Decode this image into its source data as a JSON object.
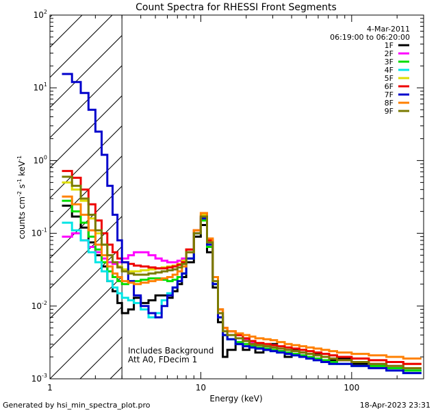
{
  "footer": {
    "generated_by": "Generated by hsi_min_spectra_plot.pro",
    "timestamp": "18-Apr-2023 23:31"
  },
  "chart_data": {
    "type": "line",
    "title": "Count Spectra for RHESSI Front Segments",
    "date": "4-Mar-2011",
    "time_range": "06:19:00 to 06:20:00",
    "xlabel": "Energy (keV)",
    "ylabel_parts": {
      "pre": "counts cm",
      "e1": "-2",
      "mid": " s",
      "e2": "-1",
      "mid2": " keV",
      "e3": "-1"
    },
    "xscale": "log",
    "yscale": "log",
    "xlim": [
      1,
      300
    ],
    "ylim": [
      0.001,
      100
    ],
    "x_ticks": [
      {
        "value": 1,
        "label": "1"
      },
      {
        "value": 10,
        "label": "10"
      },
      {
        "value": 100,
        "label": "100"
      }
    ],
    "y_ticks": [
      {
        "value": 0.001,
        "base": "10",
        "exp": "-3"
      },
      {
        "value": 0.01,
        "base": "10",
        "exp": "-2"
      },
      {
        "value": 0.1,
        "base": "10",
        "exp": "-1"
      },
      {
        "value": 1,
        "base": "10",
        "exp": "0"
      },
      {
        "value": 10,
        "base": "10",
        "exp": "1"
      },
      {
        "value": 100,
        "base": "10",
        "exp": "2"
      }
    ],
    "hatched_region": {
      "x_range": [
        1,
        3
      ],
      "description": "excluded low-energy region"
    },
    "annotations": [
      "Includes Background",
      "Att A0, FDecim 1"
    ],
    "legend_position": "top-right",
    "series": [
      {
        "name": "1F",
        "color": "#000000",
        "values": [
          0.24,
          0.17,
          0.12,
          0.075,
          0.05,
          0.035,
          0.022,
          0.016,
          0.011,
          0.008,
          0.009,
          0.013,
          0.011,
          0.012,
          0.014,
          0.014,
          0.013,
          0.016,
          0.02,
          0.025,
          0.04,
          0.09,
          0.13,
          0.055,
          0.018,
          0.006,
          0.002,
          0.0025,
          0.003,
          0.0025,
          0.003,
          0.0023,
          0.0025,
          0.003,
          0.0024,
          0.002,
          0.0025,
          0.0023,
          0.002,
          0.0022,
          0.002,
          0.0018,
          0.0019,
          0.0016,
          0.0015,
          0.0014,
          0.0013
        ]
      },
      {
        "name": "2F",
        "color": "#ff00ff",
        "values": [
          0.09,
          0.1,
          0.08,
          0.065,
          0.055,
          0.045,
          0.04,
          0.038,
          0.04,
          0.045,
          0.05,
          0.055,
          0.055,
          0.05,
          0.045,
          0.042,
          0.04,
          0.04,
          0.042,
          0.045,
          0.06,
          0.11,
          0.17,
          0.08,
          0.025,
          0.008,
          0.005,
          0.0045,
          0.004,
          0.0035,
          0.0032,
          0.003,
          0.0028,
          0.0027,
          0.0026,
          0.0025,
          0.0024,
          0.0023,
          0.0022,
          0.0021,
          0.002,
          0.0019,
          0.0018,
          0.0017,
          0.0016,
          0.0015,
          0.0014
        ]
      },
      {
        "name": "3F",
        "color": "#00dd00",
        "values": [
          0.28,
          0.2,
          0.14,
          0.09,
          0.06,
          0.04,
          0.03,
          0.025,
          0.022,
          0.02,
          0.021,
          0.022,
          0.023,
          0.024,
          0.024,
          0.023,
          0.022,
          0.023,
          0.025,
          0.028,
          0.045,
          0.1,
          0.15,
          0.065,
          0.02,
          0.007,
          0.004,
          0.0035,
          0.0032,
          0.003,
          0.0028,
          0.0027,
          0.0026,
          0.0025,
          0.0024,
          0.0023,
          0.0022,
          0.0021,
          0.002,
          0.0019,
          0.0018,
          0.0017,
          0.0016,
          0.0015,
          0.0015,
          0.0014,
          0.0013
        ]
      },
      {
        "name": "4F",
        "color": "#00e5e5",
        "values": [
          0.14,
          0.11,
          0.08,
          0.055,
          0.04,
          0.03,
          0.022,
          0.018,
          0.015,
          0.013,
          0.012,
          0.011,
          0.009,
          0.007,
          0.008,
          0.012,
          0.015,
          0.018,
          0.022,
          0.028,
          0.045,
          0.1,
          0.16,
          0.07,
          0.02,
          0.007,
          0.004,
          0.0035,
          0.003,
          0.0028,
          0.0027,
          0.0026,
          0.0025,
          0.0024,
          0.0023,
          0.0022,
          0.0021,
          0.002,
          0.0019,
          0.0018,
          0.0017,
          0.0016,
          0.0016,
          0.0015,
          0.0014,
          0.0013,
          0.0012
        ]
      },
      {
        "name": "5F",
        "color": "#dddd00",
        "values": [
          0.5,
          0.4,
          0.28,
          0.16,
          0.1,
          0.07,
          0.05,
          0.04,
          0.035,
          0.032,
          0.03,
          0.03,
          0.031,
          0.032,
          0.033,
          0.034,
          0.035,
          0.036,
          0.038,
          0.042,
          0.06,
          0.11,
          0.18,
          0.08,
          0.025,
          0.009,
          0.005,
          0.0045,
          0.004,
          0.0036,
          0.0033,
          0.0031,
          0.003,
          0.0029,
          0.0028,
          0.0027,
          0.0026,
          0.0025,
          0.0024,
          0.0023,
          0.0022,
          0.0021,
          0.002,
          0.0019,
          0.0018,
          0.0017,
          0.0016
        ]
      },
      {
        "name": "6F",
        "color": "#ee0000",
        "values": [
          0.72,
          0.58,
          0.4,
          0.25,
          0.15,
          0.1,
          0.07,
          0.055,
          0.045,
          0.04,
          0.038,
          0.036,
          0.035,
          0.034,
          0.033,
          0.033,
          0.034,
          0.035,
          0.037,
          0.04,
          0.06,
          0.11,
          0.17,
          0.08,
          0.025,
          0.009,
          0.005,
          0.0045,
          0.004,
          0.0036,
          0.0033,
          0.0031,
          0.003,
          0.0029,
          0.0028,
          0.0027,
          0.0026,
          0.0025,
          0.0024,
          0.0023,
          0.0022,
          0.0021,
          0.002,
          0.0019,
          0.0018,
          0.0017,
          0.0016
        ]
      },
      {
        "name": "7F",
        "color": "#0000cc",
        "values": [
          15.5,
          12,
          8.5,
          5,
          2.5,
          1.2,
          0.45,
          0.18,
          0.08,
          0.04,
          0.022,
          0.014,
          0.01,
          0.008,
          0.007,
          0.01,
          0.014,
          0.018,
          0.022,
          0.028,
          0.045,
          0.1,
          0.16,
          0.07,
          0.02,
          0.007,
          0.004,
          0.0035,
          0.003,
          0.0028,
          0.0027,
          0.0026,
          0.0025,
          0.0024,
          0.0023,
          0.0022,
          0.0021,
          0.002,
          0.0019,
          0.0018,
          0.0017,
          0.0016,
          0.0016,
          0.0015,
          0.0014,
          0.0013,
          0.0012
        ]
      },
      {
        "name": "8F",
        "color": "#ff8000",
        "values": [
          0.32,
          0.25,
          0.18,
          0.11,
          0.07,
          0.05,
          0.035,
          0.028,
          0.025,
          0.022,
          0.021,
          0.02,
          0.021,
          0.022,
          0.023,
          0.024,
          0.025,
          0.027,
          0.03,
          0.035,
          0.055,
          0.11,
          0.19,
          0.085,
          0.025,
          0.009,
          0.005,
          0.0045,
          0.0042,
          0.004,
          0.0038,
          0.0036,
          0.0035,
          0.0034,
          0.0032,
          0.003,
          0.0029,
          0.0028,
          0.0027,
          0.0026,
          0.0025,
          0.0024,
          0.0023,
          0.0022,
          0.0021,
          0.002,
          0.0019
        ]
      },
      {
        "name": "9F",
        "color": "#7a7a00",
        "values": [
          0.6,
          0.45,
          0.3,
          0.18,
          0.11,
          0.07,
          0.05,
          0.04,
          0.034,
          0.03,
          0.028,
          0.027,
          0.027,
          0.028,
          0.029,
          0.03,
          0.031,
          0.032,
          0.034,
          0.038,
          0.055,
          0.1,
          0.17,
          0.075,
          0.022,
          0.008,
          0.0045,
          0.004,
          0.0036,
          0.0033,
          0.003,
          0.0029,
          0.0028,
          0.0027,
          0.0026,
          0.0025,
          0.0024,
          0.0023,
          0.0022,
          0.0021,
          0.002,
          0.0019,
          0.0018,
          0.0017,
          0.0016,
          0.0015,
          0.0014
        ]
      }
    ],
    "energy_bin_edges": [
      1.2,
      1.4,
      1.6,
      1.8,
      2.0,
      2.2,
      2.4,
      2.6,
      2.8,
      3.0,
      3.3,
      3.6,
      4.0,
      4.5,
      5.0,
      5.5,
      6.0,
      6.5,
      7.0,
      7.5,
      8.0,
      9.0,
      10.0,
      11.0,
      12.0,
      13.0,
      14.0,
      15.0,
      17.0,
      19.0,
      21.0,
      23.0,
      26.0,
      29.0,
      32.0,
      36.0,
      40.0,
      45.0,
      50.0,
      56.0,
      63.0,
      71.0,
      80.0,
      100.0,
      130.0,
      170.0,
      220.0,
      290.0
    ]
  }
}
